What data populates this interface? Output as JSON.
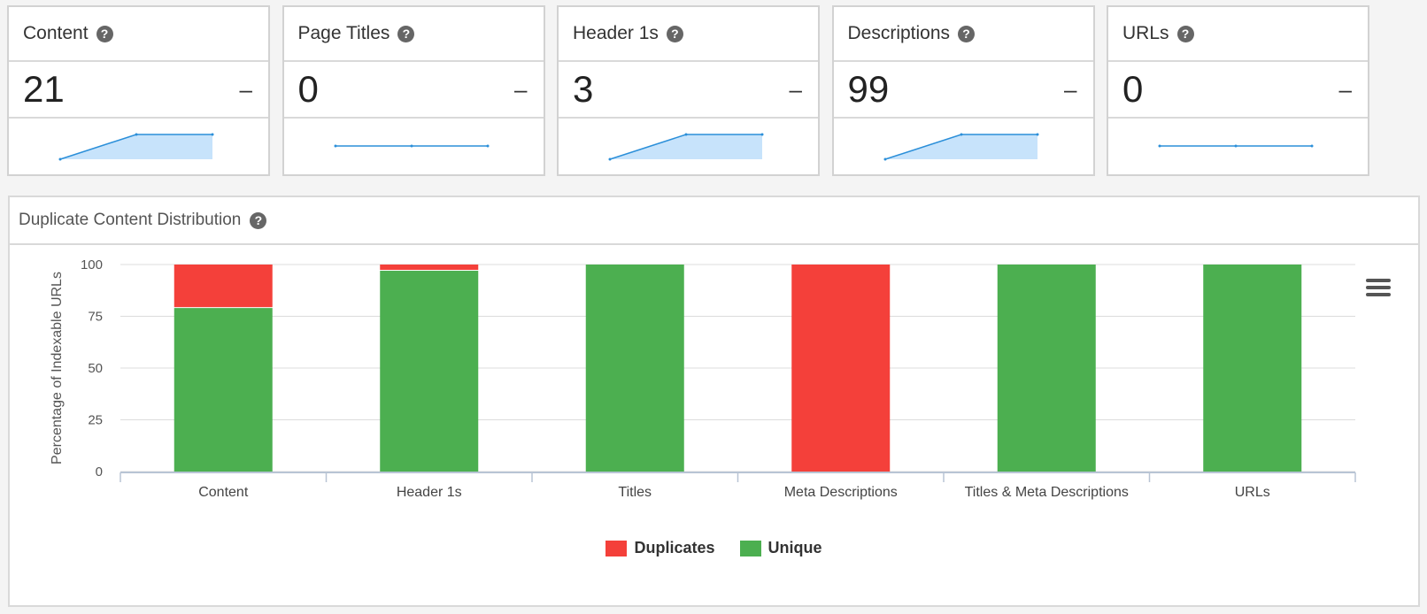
{
  "cards": [
    {
      "title": "Content",
      "value": "21",
      "trend": "–",
      "spark": [
        0,
        1,
        1
      ]
    },
    {
      "title": "Page Titles",
      "value": "0",
      "trend": "–",
      "spark": [
        0,
        0,
        0
      ]
    },
    {
      "title": "Header 1s",
      "value": "3",
      "trend": "–",
      "spark": [
        0,
        1,
        1
      ]
    },
    {
      "title": "Descriptions",
      "value": "99",
      "trend": "–",
      "spark": [
        0,
        1,
        1
      ]
    },
    {
      "title": "URLs",
      "value": "0",
      "trend": "–",
      "spark": [
        0,
        0,
        0
      ]
    }
  ],
  "help_icon": "question-circle-icon",
  "panel": {
    "title": "Duplicate Content Distribution"
  },
  "colors": {
    "duplicates": "#f4403a",
    "unique": "#4caf50",
    "spark_line": "#2b8fd9",
    "spark_fill": "#c7e3fb"
  },
  "chart_data": {
    "type": "bar",
    "stacked": true,
    "categories": [
      "Content",
      "Header 1s",
      "Titles",
      "Meta Descriptions",
      "Titles & Meta Descriptions",
      "URLs"
    ],
    "series": [
      {
        "name": "Duplicates",
        "values": [
          21,
          3,
          0,
          100,
          0,
          0
        ]
      },
      {
        "name": "Unique",
        "values": [
          79,
          97,
          100,
          0,
          100,
          100
        ]
      }
    ],
    "ylabel": "Percentage of Indexable URLs",
    "yticks": [
      "0",
      "25",
      "50",
      "75",
      "100"
    ],
    "ylim": [
      0,
      100
    ],
    "grid": true,
    "legend_position": "bottom"
  }
}
